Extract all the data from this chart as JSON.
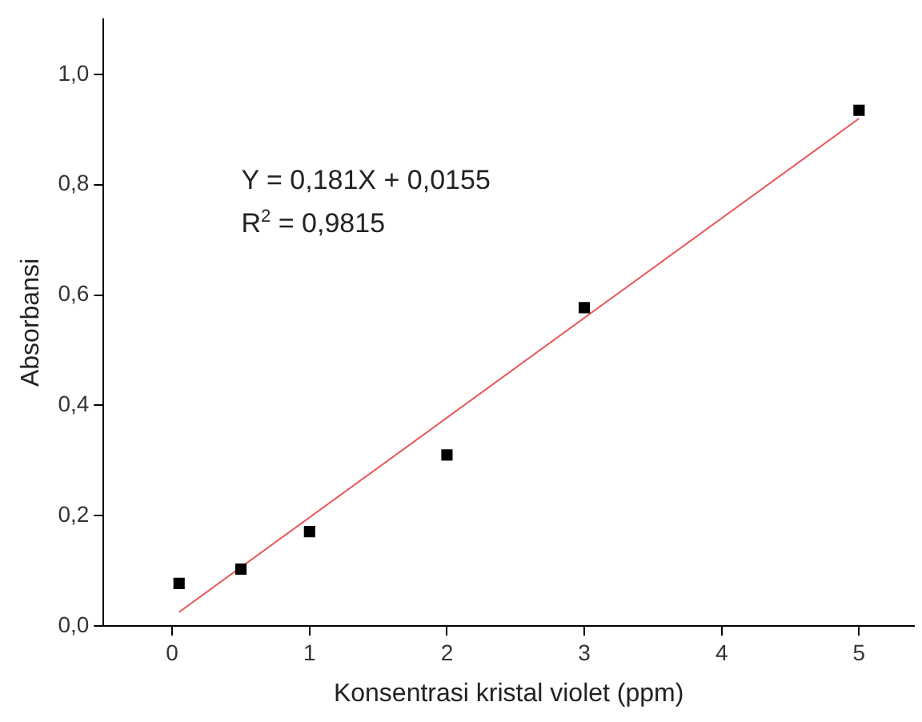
{
  "chart_data": {
    "type": "scatter",
    "xlabel": "Konsentrasi kristal violet (ppm)",
    "ylabel": "Absorbansi",
    "annotations": [
      "Y = 0,181X + 0,0155",
      "R$^{2}$ = 0,9815"
    ],
    "series": [
      {
        "type": "scatter",
        "color": "#000000",
        "marker": "square",
        "x": [
          0.05,
          0.5,
          1,
          2,
          3,
          5
        ],
        "values": [
          0.077,
          0.103,
          0.171,
          0.31,
          0.577,
          0.935
        ]
      },
      {
        "type": "line",
        "color": "#e8585a",
        "line_style": "solid",
        "marker": "none",
        "x": [
          0.05,
          5
        ],
        "values": [
          0.025,
          0.92
        ]
      }
    ],
    "xlim": [
      -0.5,
      5.4
    ],
    "xticks": [
      0,
      1,
      2,
      3,
      4,
      5
    ],
    "ylim": [
      0,
      1.1
    ],
    "yticks": [
      {
        "value": 0,
        "label": "0,0"
      },
      {
        "value": 0.2,
        "label": "0,2"
      },
      {
        "value": 0.4,
        "label": "0,4"
      },
      {
        "value": 0.6,
        "label": "0,6"
      },
      {
        "value": 0.8,
        "label": "0,8"
      },
      {
        "value": 1,
        "label": "1,0"
      }
    ],
    "grid": false,
    "legend": false
  }
}
